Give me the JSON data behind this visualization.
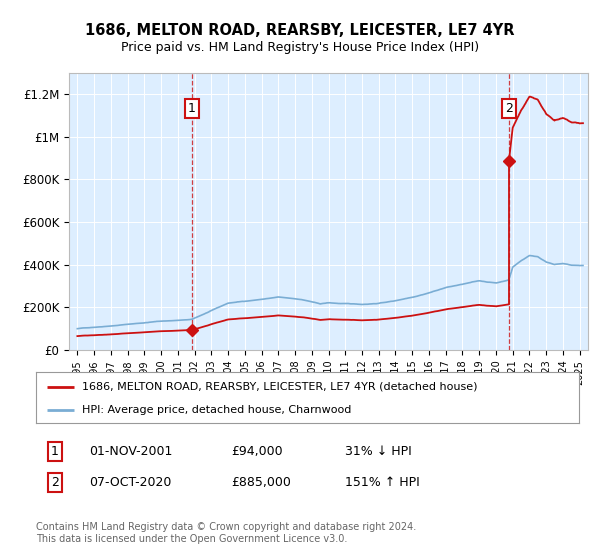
{
  "title": "1686, MELTON ROAD, REARSBY, LEICESTER, LE7 4YR",
  "subtitle": "Price paid vs. HM Land Registry's House Price Index (HPI)",
  "plot_bg_color": "#ddeeff",
  "hpi_color": "#7aadd4",
  "price_color": "#cc1111",
  "sale1_date_x": 2001.83,
  "sale1_price": 94000,
  "sale2_date_x": 2020.77,
  "sale2_price": 885000,
  "ylim": [
    0,
    1300000
  ],
  "yticks": [
    0,
    200000,
    400000,
    600000,
    800000,
    1000000,
    1200000
  ],
  "ytick_labels": [
    "£0",
    "£200K",
    "£400K",
    "£600K",
    "£800K",
    "£1M",
    "£1.2M"
  ],
  "xlim_start": 1994.5,
  "xlim_end": 2025.5,
  "legend_label_red": "1686, MELTON ROAD, REARSBY, LEICESTER, LE7 4YR (detached house)",
  "legend_label_blue": "HPI: Average price, detached house, Charnwood",
  "annotation1_label": "1",
  "annotation2_label": "2",
  "table_row1": [
    "1",
    "01-NOV-2001",
    "£94,000",
    "31% ↓ HPI"
  ],
  "table_row2": [
    "2",
    "07-OCT-2020",
    "£885,000",
    "151% ↑ HPI"
  ],
  "footer": "Contains HM Land Registry data © Crown copyright and database right 2024.\nThis data is licensed under the Open Government Licence v3.0."
}
